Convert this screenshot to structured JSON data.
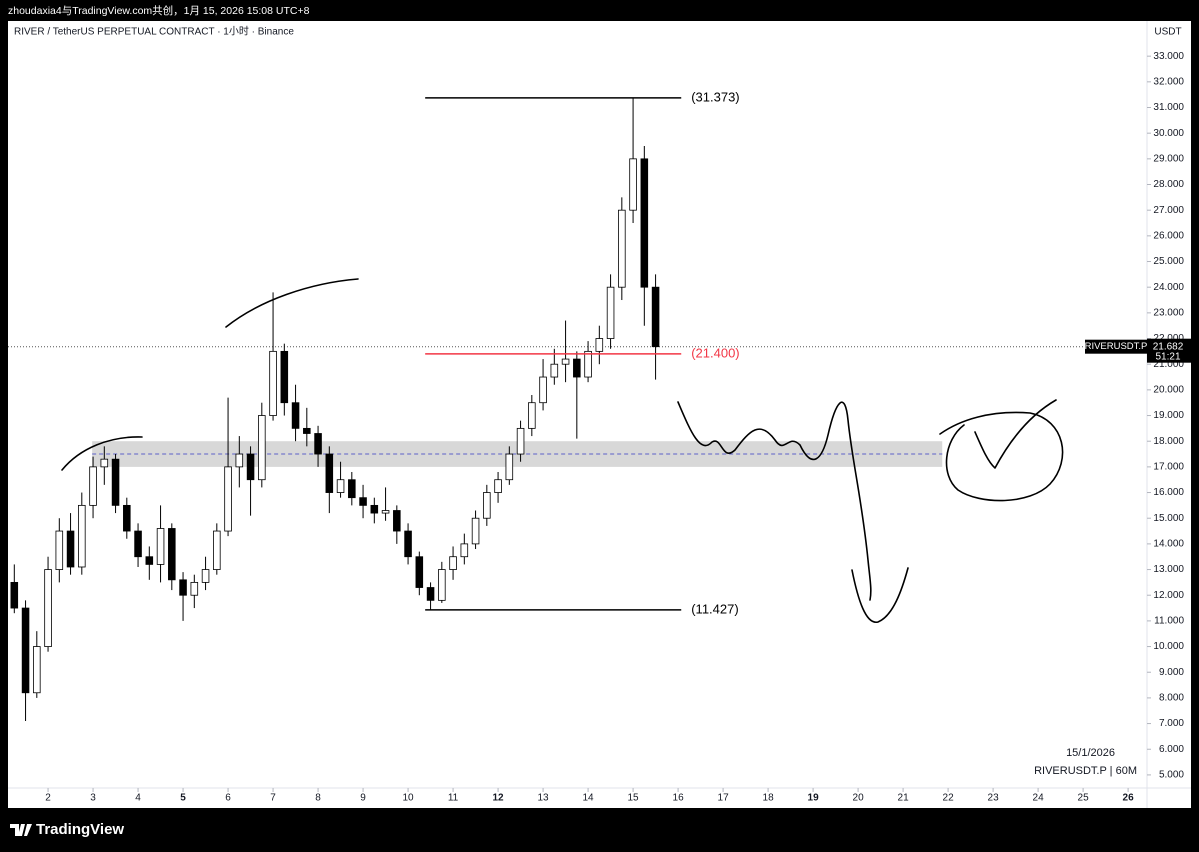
{
  "header": "zhoudaxia4与TradingView.com共创，1月 15, 2026 15:08 UTC+8",
  "footer_logo": "TradingView",
  "chart_data": {
    "type": "candlestick",
    "title": "RIVER / TetherUS PERPETUAL CONTRACT · 1小时 · Binance",
    "y_unit": "USDT",
    "ticker": "RIVERUSDT.P",
    "last_price": 21.682,
    "countdown": "51:21",
    "date_note": "15/1/2026",
    "interval_note": "RIVERUSDT.P | 60M",
    "xlim": [
      1.11,
      26.42
    ],
    "xticks": [
      2,
      3,
      4,
      5,
      6,
      7,
      8,
      9,
      10,
      11,
      12,
      13,
      14,
      15,
      16,
      17,
      18,
      19,
      20,
      21,
      22,
      23,
      24,
      25,
      26
    ],
    "major_xticks": [
      5,
      12,
      19,
      26
    ],
    "ylim": [
      4.49,
      34.37
    ],
    "yticks": [
      {
        "value": 5,
        "label": "5.000"
      },
      {
        "value": 6,
        "label": "6.000"
      },
      {
        "value": 7,
        "label": "7.000"
      },
      {
        "value": 8,
        "label": "8.000"
      },
      {
        "value": 9,
        "label": "9.000"
      },
      {
        "value": 10,
        "label": "10.000"
      },
      {
        "value": 11,
        "label": "11.000"
      },
      {
        "value": 12,
        "label": "12.000"
      },
      {
        "value": 13,
        "label": "13.000"
      },
      {
        "value": 14,
        "label": "14.000"
      },
      {
        "value": 15,
        "label": "15.000"
      },
      {
        "value": 16,
        "label": "16.000"
      },
      {
        "value": 17,
        "label": "17.000"
      },
      {
        "value": 18,
        "label": "18.000"
      },
      {
        "value": 19,
        "label": "19.000"
      },
      {
        "value": 20,
        "label": "20.000"
      },
      {
        "value": 21,
        "label": "21.000"
      },
      {
        "value": 22,
        "label": "22.000"
      },
      {
        "value": 23,
        "label": "23.000"
      },
      {
        "value": 24,
        "label": "24.000"
      },
      {
        "value": 25,
        "label": "25.000"
      },
      {
        "value": 26,
        "label": "26.000"
      },
      {
        "value": 27,
        "label": "27.000"
      },
      {
        "value": 28,
        "label": "28.000"
      },
      {
        "value": 29,
        "label": "29.000"
      },
      {
        "value": 30,
        "label": "30.000"
      },
      {
        "value": 31,
        "label": "31.000"
      },
      {
        "value": 32,
        "label": "32.000"
      },
      {
        "value": 33,
        "label": "33.000"
      }
    ],
    "up_color": "#ffffff",
    "down_color": "#000000",
    "x": [
      1.25,
      1.5,
      1.75,
      2,
      2.25,
      2.5,
      2.75,
      3,
      3.25,
      3.5,
      3.75,
      4,
      4.25,
      4.5,
      4.75,
      5,
      5.25,
      5.5,
      5.75,
      6,
      6.25,
      6.5,
      6.75,
      7,
      7.25,
      7.5,
      7.75,
      8,
      8.25,
      8.5,
      8.75,
      9,
      9.25,
      9.5,
      9.75,
      10,
      10.25,
      10.5,
      10.75,
      11,
      11.25,
      11.5,
      11.75,
      12,
      12.25,
      12.5,
      12.75,
      13,
      13.25,
      13.5,
      13.75,
      14,
      14.25,
      14.5,
      14.75,
      15,
      15.25,
      15.5
    ],
    "open": [
      12.5,
      11.5,
      8.2,
      10,
      13,
      14.5,
      13.1,
      15.5,
      17,
      17.3,
      15.5,
      14.5,
      13.5,
      13.2,
      14.6,
      12.6,
      12,
      12.5,
      13,
      14.5,
      17,
      17.5,
      16.5,
      19,
      21.5,
      19.5,
      18.5,
      18.3,
      17.5,
      16,
      16.5,
      15.8,
      15.5,
      15.2,
      15.3,
      14.5,
      13.5,
      12.3,
      11.8,
      13,
      13.5,
      14,
      15,
      16,
      16.5,
      17.5,
      18.5,
      19.5,
      20.5,
      21,
      21.2,
      20.5,
      21.5,
      22,
      24,
      27,
      29,
      24
    ],
    "high": [
      13.2,
      11.8,
      10.6,
      13.5,
      15,
      15.2,
      16,
      17.4,
      17.8,
      17.5,
      15.8,
      14.8,
      13.9,
      15.5,
      14.8,
      12.9,
      12.8,
      13.5,
      14.8,
      19.7,
      18.2,
      17.8,
      19.5,
      23.8,
      21.8,
      20.2,
      19.3,
      18.6,
      17.8,
      17.2,
      16.8,
      16.3,
      15.8,
      16.2,
      15.5,
      14.8,
      13.7,
      12.5,
      13.3,
      13.9,
      14.4,
      15.3,
      16.3,
      16.8,
      17.8,
      18.8,
      19.8,
      21.2,
      21.6,
      22.7,
      21.5,
      21.9,
      22.5,
      24.5,
      27.5,
      31.373,
      29.5,
      24.5
    ],
    "low": [
      11.3,
      7.1,
      8,
      9.8,
      12.5,
      12.8,
      12.8,
      15,
      16.3,
      15.2,
      14.2,
      13.1,
      12.6,
      12.5,
      12.2,
      11,
      11.5,
      12.2,
      12.8,
      14.3,
      16.2,
      15.1,
      16.2,
      18.8,
      19,
      18,
      17.8,
      17,
      15.2,
      15.8,
      15.5,
      15,
      14.8,
      14.9,
      14,
      13.2,
      12,
      11.427,
      11.7,
      12.6,
      13.2,
      13.8,
      14.7,
      15.6,
      16.3,
      17.2,
      18.2,
      19.2,
      20.2,
      20.3,
      18.1,
      20.3,
      21,
      21.6,
      23.5,
      26.5,
      22.5,
      20.4
    ],
    "close": [
      11.5,
      8.2,
      10,
      13,
      14.5,
      13.1,
      15.5,
      17,
      17.3,
      15.5,
      14.5,
      13.5,
      13.2,
      14.6,
      12.6,
      12,
      12.5,
      13,
      14.5,
      17,
      17.5,
      16.5,
      19,
      21.5,
      19.5,
      18.5,
      18.3,
      17.5,
      16,
      16.5,
      15.8,
      15.5,
      15.2,
      15.3,
      14.5,
      13.5,
      12.3,
      11.8,
      13,
      13.5,
      14,
      15,
      16,
      16.5,
      17.5,
      18.5,
      19.5,
      20.5,
      21,
      21.2,
      20.5,
      21.5,
      22,
      24,
      27,
      29,
      24,
      21.682
    ],
    "levels": [
      {
        "value": 31.373,
        "label": "(31.373)",
        "x_range": [
          10.38,
          16.07
        ],
        "color": "#000000"
      },
      {
        "value": 21.4,
        "label": "(21.400)",
        "x_range": [
          10.38,
          16.07
        ],
        "color": "#f23645"
      },
      {
        "value": 11.427,
        "label": "(11.427)",
        "x_range": [
          10.38,
          16.07
        ],
        "color": "#000000"
      }
    ],
    "zone": {
      "low": 17,
      "high": 18,
      "mid": 17.5,
      "x_range": [
        2.98,
        21.87
      ],
      "color": "#d1d1d1",
      "mid_color": "#5b5fc7"
    }
  }
}
